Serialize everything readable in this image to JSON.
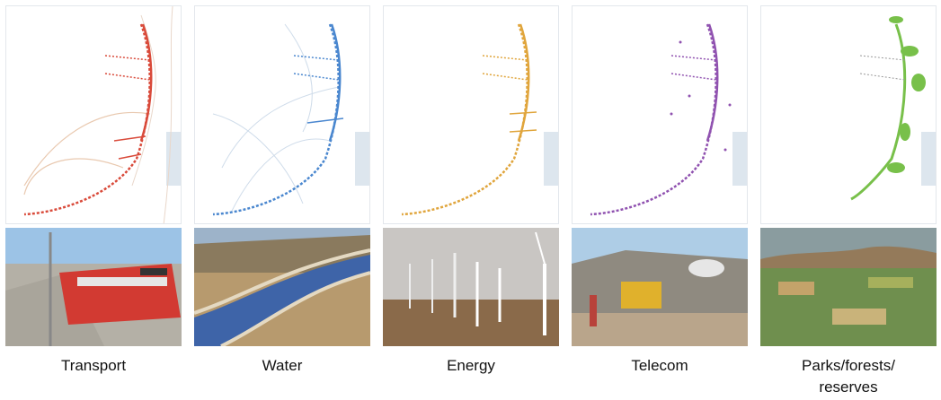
{
  "panels": [
    {
      "id": "transport",
      "caption": "Transport",
      "color": "#d94a3a",
      "photo_icon": "train-photo"
    },
    {
      "id": "water",
      "caption": "Water",
      "color": "#4a87cf",
      "photo_icon": "canal-photo"
    },
    {
      "id": "energy",
      "caption": "Energy",
      "color": "#e0a53c",
      "photo_icon": "wind-turbines-photo"
    },
    {
      "id": "telecom",
      "caption": "Telecom",
      "color": "#9052b0",
      "photo_icon": "satellite-dish-photo"
    },
    {
      "id": "parks",
      "caption": "Parks/forests/\nreserves",
      "color": "#78c04a",
      "photo_icon": "farmland-photo"
    }
  ],
  "colors": {
    "sea": "#dde6ee",
    "border_line": "#e3cfbf"
  }
}
